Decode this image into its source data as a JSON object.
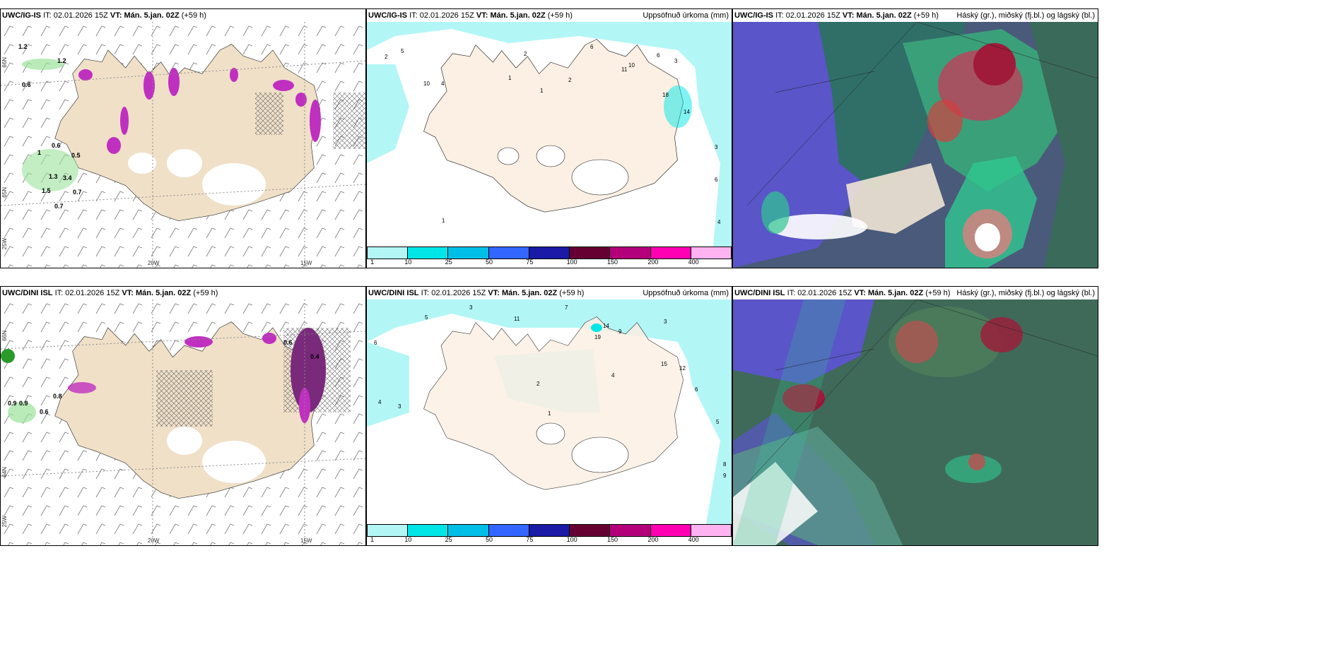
{
  "panels": {
    "p1": {
      "model": "UWC/IG-IS",
      "it_label": "IT:",
      "it": "02.01.2026 15Z",
      "vt_label": "VT:",
      "vt": "Mán. 5.jan. 02Z",
      "lead": "(+59 h)",
      "right": ""
    },
    "p2": {
      "model": "UWC/IG-IS",
      "it_label": "IT:",
      "it": "02.01.2026 15Z",
      "vt_label": "VT:",
      "vt": "Mán. 5.jan. 02Z",
      "lead": "(+59 h)",
      "right": "Uppsöfnuð úrkoma (mm)"
    },
    "p3": {
      "model": "UWC/IG-IS",
      "it_label": "IT:",
      "it": "02.01.2026 15Z",
      "vt_label": "VT:",
      "vt": "Mán. 5.jan. 02Z",
      "lead": "(+59 h)",
      "right": "Háský (gr.), miðský (fj.bl.) og lágský (bl.)"
    },
    "p4": {
      "model": "UWC/DINI ISL",
      "it_label": "IT:",
      "it": "02.01.2026 15Z",
      "vt_label": "VT:",
      "vt": "Mán. 5.jan. 02Z",
      "lead": "(+59 h)",
      "right": ""
    },
    "p5": {
      "model": "UWC/DINI ISL",
      "it_label": "IT:",
      "it": "02.01.2026 15Z",
      "vt_label": "VT:",
      "vt": "Mán. 5.jan. 02Z",
      "lead": "(+59 h)",
      "right": "Uppsöfnuð úrkoma (mm)"
    },
    "p6": {
      "model": "UWC/DINI ISL",
      "it_label": "IT:",
      "it": "02.01.2026 15Z",
      "vt_label": "VT:",
      "vt": "Mán. 5.jan. 02Z",
      "lead": "(+59 h)",
      "right": "Háský (gr.), miðský (fj.bl.) og lágský (bl.)"
    }
  },
  "axes": {
    "lon_20": "20W",
    "lon_15": "15W",
    "lon_25": "25W",
    "lat_66": "66N",
    "lat_65": "65N",
    "lat_64": "64N"
  },
  "colorbar": {
    "ticks": [
      "1",
      "10",
      "25",
      "50",
      "75",
      "100",
      "150",
      "200",
      "400"
    ],
    "colors": [
      "#b3f6f6",
      "#00e6e6",
      "#00bfe6",
      "#3366ff",
      "#1a1aa6",
      "#660033",
      "#b3007a",
      "#ff00b3",
      "#ffb3f0"
    ]
  },
  "labels": {
    "top_wind": [
      "1.2",
      "1.2",
      "0.6",
      "0.6",
      "0.5",
      "1",
      "1.3",
      "3.4",
      "1.5",
      "0.7",
      "0.7"
    ],
    "top_precip": [
      "2",
      "5",
      "10",
      "4",
      "1",
      "2",
      "1",
      "2",
      "6",
      "11",
      "10",
      "6",
      "3",
      "14",
      "18",
      "3",
      "6",
      "4",
      "1"
    ],
    "bottom_wind": [
      "0.9",
      "0.9",
      "0.6",
      "0.8",
      "0.6",
      "0.4"
    ],
    "bottom_precip": [
      "6",
      "5",
      "3",
      "11",
      "7",
      "14",
      "19",
      "9",
      "3",
      "12",
      "15",
      "4",
      "6",
      "5",
      "8",
      "9",
      "4",
      "3",
      "2",
      "1"
    ]
  }
}
